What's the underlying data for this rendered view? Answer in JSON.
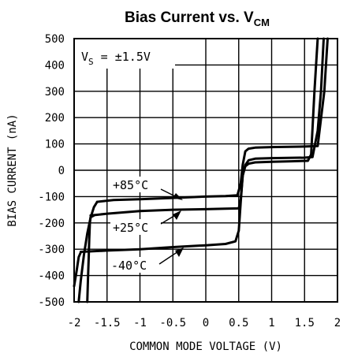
{
  "chart_data": {
    "type": "line",
    "title": "Bias Current vs. V",
    "title_subscript": "CM",
    "xlabel": "COMMON MODE VOLTAGE (V)",
    "ylabel": "BIAS CURRENT (nA)",
    "xlim": [
      -2,
      2
    ],
    "ylim": [
      -500,
      500
    ],
    "x_ticks": [
      "-2",
      "-1.5",
      "-1",
      "-0.5",
      "0",
      "0.5",
      "1",
      "1.5",
      "2"
    ],
    "y_ticks": [
      "500",
      "400",
      "300",
      "200",
      "100",
      "0",
      "-100",
      "-200",
      "-300",
      "-400",
      "-500"
    ],
    "grid": true,
    "condition": {
      "prefix": "V",
      "subscript": "S",
      "suffix": " = ±1.5V"
    },
    "annotations": [
      {
        "text": "+85°C",
        "series": "+85°C"
      },
      {
        "text": "+25°C",
        "series": "+25°C"
      },
      {
        "text": "-40°C",
        "series": "-40°C"
      }
    ],
    "series": [
      {
        "name": "+85°C",
        "branches": [
          {
            "x": [
              -1.93,
              -1.9,
              -1.85,
              -1.8,
              -1.75,
              -1.7,
              -1.65
            ],
            "y": [
              -500,
              -420,
              -320,
              -240,
              -180,
              -140,
              -120
            ]
          },
          {
            "x": [
              -1.65,
              -1.4,
              -1.0,
              -0.5,
              0.0,
              0.3,
              0.48,
              0.53,
              0.56,
              0.6,
              0.65,
              0.75,
              1.0,
              1.5,
              1.7,
              1.8,
              1.85
            ],
            "y": [
              -120,
              -113,
              -110,
              -105,
              -100,
              -98,
              -95,
              -50,
              20,
              72,
              82,
              86,
              88,
              90,
              92,
              300,
              500
            ]
          }
        ]
      },
      {
        "name": "+25°C",
        "branches": [
          {
            "x": [
              -1.8,
              -1.79,
              -1.78,
              -1.77,
              -1.76,
              -1.75,
              -1.7
            ],
            "y": [
              -500,
              -420,
              -340,
              -260,
              -200,
              -178,
              -172
            ]
          },
          {
            "x": [
              -1.75,
              -1.5,
              -1.0,
              -0.5,
              0.0,
              0.3,
              0.5,
              0.53,
              0.56,
              0.6,
              0.65,
              0.75,
              1.0,
              1.5,
              1.62,
              1.7,
              1.75,
              1.79
            ],
            "y": [
              -172,
              -165,
              -155,
              -150,
              -148,
              -146,
              -145,
              -110,
              -20,
              20,
              38,
              44,
              46,
              48,
              50,
              150,
              300,
              500
            ]
          }
        ]
      },
      {
        "name": "-40°C",
        "branches": [
          {
            "x": [
              -2.0,
              -1.96,
              -1.93,
              -1.9
            ],
            "y": [
              -440,
              -380,
              -330,
              -312
            ]
          },
          {
            "x": [
              -1.9,
              -1.5,
              -1.0,
              -0.5,
              0.0,
              0.3,
              0.45,
              0.5,
              0.53,
              0.56,
              0.6,
              0.65,
              0.75,
              1.0,
              1.3,
              1.55,
              1.6,
              1.65,
              1.7
            ],
            "y": [
              -310,
              -305,
              -300,
              -292,
              -285,
              -280,
              -270,
              -230,
              -120,
              -20,
              15,
              25,
              30,
              32,
              34,
              36,
              60,
              300,
              500
            ]
          }
        ]
      }
    ]
  }
}
